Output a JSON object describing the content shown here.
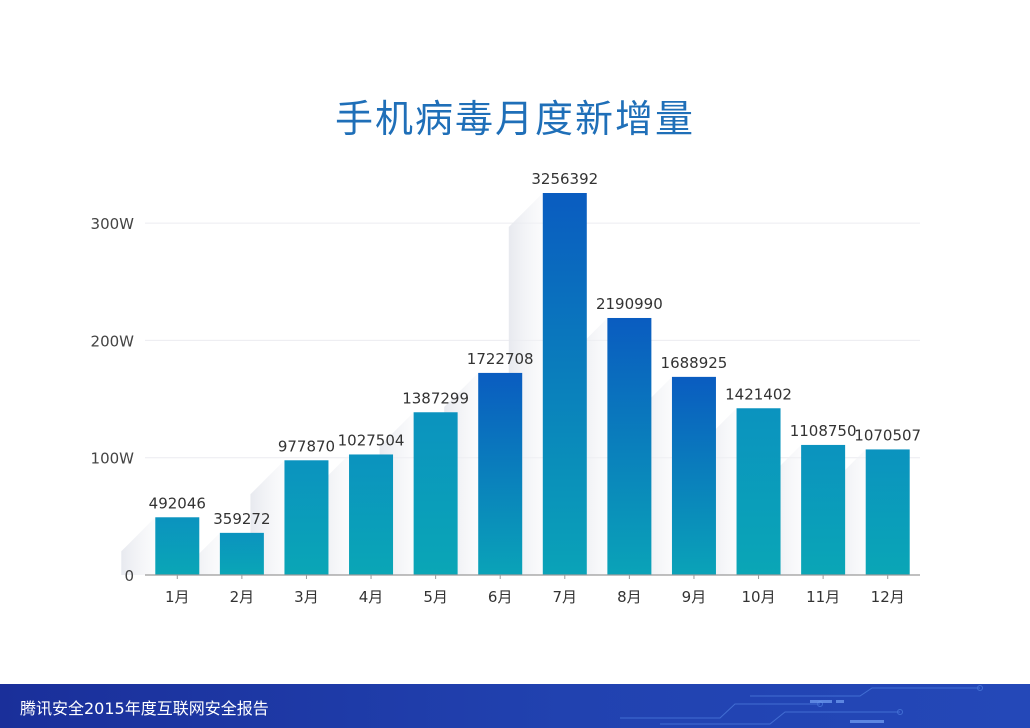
{
  "footer": {
    "report_name": "腾讯安全2015年度互联网安全报告"
  },
  "colors": {
    "title": "#1f6fb8",
    "bar_top_peak": "#0a5cc0",
    "bar_bottom": "#0aa3b8",
    "footer_bg": "#1f3aa6"
  },
  "chart_data": {
    "type": "bar",
    "title": "手机病毒月度新增量",
    "xlabel": "",
    "ylabel": "",
    "categories": [
      "1月",
      "2月",
      "3月",
      "4月",
      "5月",
      "6月",
      "7月",
      "8月",
      "9月",
      "10月",
      "11月",
      "12月"
    ],
    "values": [
      492046,
      359272,
      977870,
      1027504,
      1387299,
      1722708,
      3256392,
      2190990,
      1688925,
      1421402,
      1108750,
      1070507
    ],
    "data_labels": [
      "492046",
      "359272",
      "977870",
      "1027504",
      "1387299",
      "1722708",
      "3256392",
      "2190990",
      "1688925",
      "1421402",
      "1108750",
      "1070507"
    ],
    "yticks": [
      0,
      1000000,
      2000000,
      3000000
    ],
    "ytick_labels": [
      "0",
      "100W",
      "200W",
      "300W"
    ],
    "ylim": [
      0,
      3256392
    ],
    "grid": true,
    "legend": "none"
  }
}
